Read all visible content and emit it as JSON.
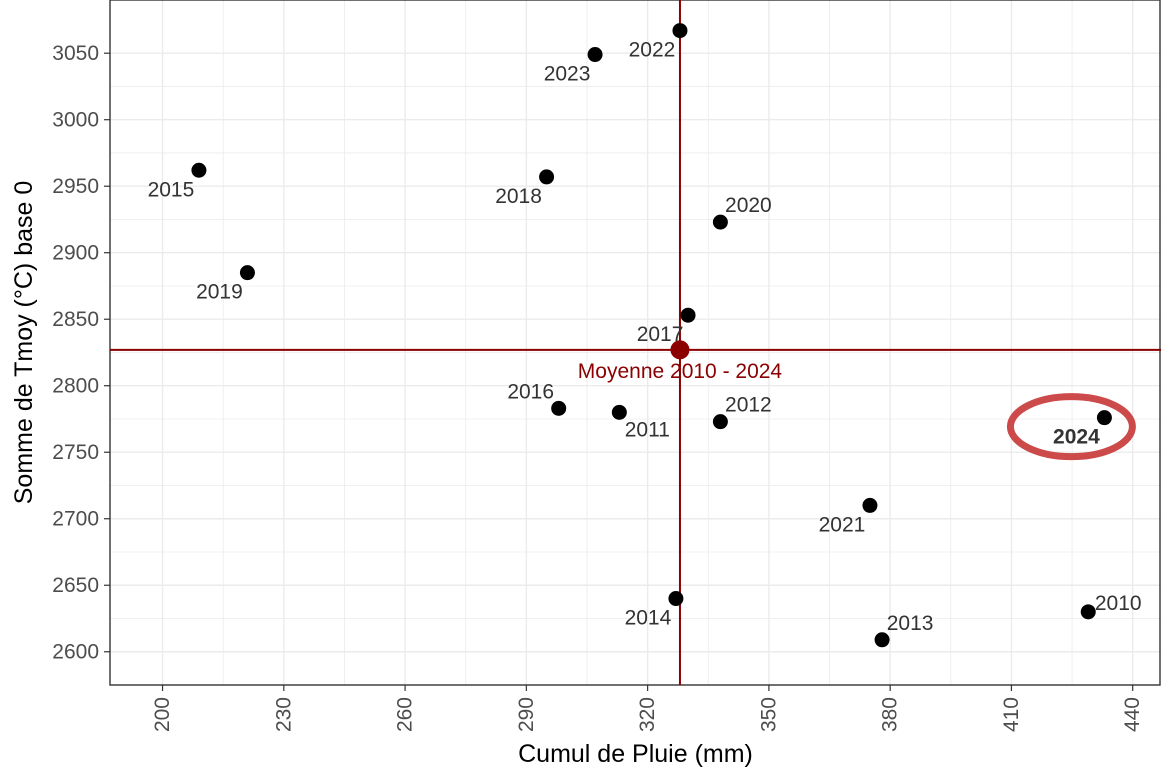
{
  "chart_data": {
    "type": "scatter",
    "xlabel": "Cumul de Pluie (mm)",
    "ylabel": "Somme de Tmoy (°C) base 0",
    "xlim": [
      187,
      447
    ],
    "ylim": [
      2575,
      3090
    ],
    "x_ticks": [
      200,
      230,
      260,
      290,
      320,
      350,
      380,
      410,
      440
    ],
    "y_ticks": [
      2600,
      2650,
      2700,
      2750,
      2800,
      2850,
      2900,
      2950,
      3000,
      3050
    ],
    "grid": true,
    "points": [
      {
        "label": "2010",
        "x": 429,
        "y": 2630
      },
      {
        "label": "2011",
        "x": 313,
        "y": 2780
      },
      {
        "label": "2012",
        "x": 338,
        "y": 2773
      },
      {
        "label": "2013",
        "x": 378,
        "y": 2609
      },
      {
        "label": "2014",
        "x": 327,
        "y": 2640
      },
      {
        "label": "2015",
        "x": 209,
        "y": 2962
      },
      {
        "label": "2016",
        "x": 298,
        "y": 2783
      },
      {
        "label": "2017",
        "x": 330,
        "y": 2853
      },
      {
        "label": "2018",
        "x": 295,
        "y": 2957
      },
      {
        "label": "2019",
        "x": 221,
        "y": 2885
      },
      {
        "label": "2020",
        "x": 338,
        "y": 2923
      },
      {
        "label": "2021",
        "x": 375,
        "y": 2710
      },
      {
        "label": "2022",
        "x": 328,
        "y": 3067
      },
      {
        "label": "2023",
        "x": 307,
        "y": 3049
      },
      {
        "label": "2024",
        "x": 433,
        "y": 2776,
        "highlight": true
      }
    ],
    "average": {
      "label": "Moyenne 2010 - 2024",
      "x": 328,
      "y": 2827
    },
    "colors": {
      "points": "#000000",
      "average": "#8b0000",
      "highlight_ring": "#cc4a4a",
      "grid": "#ebebeb",
      "axis": "#333333"
    }
  }
}
